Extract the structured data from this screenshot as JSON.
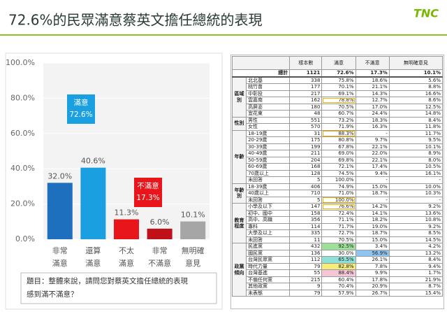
{
  "title": "72.6%的民眾滿意蔡英文擔任總統的表現",
  "logo": "TNC",
  "chart_data": {
    "type": "bar",
    "categories": [
      [
        "非常",
        "滿意"
      ],
      [
        "還算",
        "滿意"
      ],
      [
        "不太",
        "滿意"
      ],
      [
        "非常",
        "不滿意"
      ],
      [
        "無明確",
        "意見"
      ]
    ],
    "values": [
      32.0,
      40.6,
      11.3,
      6.0,
      10.1
    ],
    "value_labels": [
      "32.0%",
      "40.6%",
      "11.3%",
      "6.0%",
      "10.1%"
    ],
    "colors": [
      "#1f6fbf",
      "#1aa0e0",
      "#e8151b",
      "#c0101a",
      "#a6a6a6"
    ],
    "ylim": [
      0,
      100
    ],
    "yticks": [
      {
        "value": 0,
        "label": "0.0%"
      },
      {
        "value": 20,
        "label": "20.0%"
      },
      {
        "value": 40,
        "label": "40.0%"
      },
      {
        "value": 60,
        "label": "60.0%"
      },
      {
        "value": 80,
        "label": "80.0%"
      },
      {
        "value": 100,
        "label": "100.0%"
      }
    ],
    "grid": true,
    "annotations": [
      {
        "lines": [
          "滿意",
          "72.6%"
        ],
        "color": "#1aa0e0"
      },
      {
        "lines": [
          "不滿意",
          "17.3%"
        ],
        "color": "#e8151b"
      }
    ]
  },
  "question": [
    "題目：整體來說，請問您對蔡英文擔任總統的表現",
    "感到滿不滿意？"
  ],
  "table": {
    "header": [
      "樣本數",
      "滿意",
      "不滿意",
      "無明確意見"
    ],
    "total": [
      "總計",
      1121,
      "72.6%",
      "17.3%",
      "10.1%"
    ],
    "groups": [
      {
        "name": "區域別",
        "rows": [
          [
            "北北基",
            338,
            "75.8%",
            "18.6%",
            "5.6%"
          ],
          [
            "桃竹苗",
            177,
            "70.1%",
            "21.1%",
            "8.8%"
          ],
          [
            "中彰投",
            217,
            "69.1%",
            "14.3%",
            "16.6%"
          ],
          [
            "雲嘉南",
            162,
            "78.8%",
            "12.7%",
            "8.6%"
          ],
          [
            "高屏澎",
            180,
            "70.5%",
            "17.0%",
            "12.5%"
          ],
          [
            "宜花東",
            48,
            "60.7%",
            "24.4%",
            "14.8%"
          ]
        ]
      },
      {
        "name": "性別",
        "rows": [
          [
            "男性",
            551,
            "73.2%",
            "18.3%",
            "8.4%"
          ],
          [
            "女性",
            570,
            "71.9%",
            "16.3%",
            "11.8%"
          ]
        ]
      },
      {
        "name": "年齡",
        "rows": [
          [
            "18-19歲",
            31,
            "88.3%",
            "-",
            "11.7%"
          ],
          [
            "20-29歲",
            175,
            "80.8%",
            "9.7%",
            "9.5%"
          ],
          [
            "30-39歲",
            199,
            "67.8%",
            "22.1%",
            "10.1%"
          ],
          [
            "40-49歲",
            211,
            "69.0%",
            "22.0%",
            "8.9%"
          ],
          [
            "50-59歲",
            204,
            "69.8%",
            "22.1%",
            "8.0%"
          ],
          [
            "60-69歲",
            168,
            "72.1%",
            "17.4%",
            "10.5%"
          ],
          [
            "70歲以上",
            128,
            "74.5%",
            "9.4%",
            "16.1%"
          ],
          [
            "未回答",
            5,
            "100.0%",
            "-",
            "-"
          ]
        ]
      },
      {
        "name": "年齡別",
        "rows": [
          [
            "18-39歲",
            406,
            "74.9%",
            "15.0%",
            "10.0%"
          ],
          [
            "40歲以上",
            710,
            "71.0%",
            "18.7%",
            "10.3%"
          ],
          [
            "未回答",
            5,
            "100.0%",
            "-",
            "-"
          ]
        ]
      },
      {
        "name": "教育程度",
        "rows": [
          [
            "小學及以下",
            147,
            "76.6%",
            "14.2%",
            "9.2%"
          ],
          [
            "初中、國中",
            158,
            "72.4%",
            "14.1%",
            "13.6%"
          ],
          [
            "高中、高職",
            356,
            "71.1%",
            "18.2%",
            "10.8%"
          ],
          [
            "專科",
            114,
            "71.7%",
            "19.0%",
            "9.2%"
          ],
          [
            "大學及以上",
            335,
            "72.7%",
            "18.7%",
            "8.5%"
          ],
          [
            "未回答",
            11,
            "70.5%",
            "15.0%",
            "14.5%"
          ]
        ]
      },
      {
        "name": "政黨傾向",
        "rows": [
          [
            "民進黨",
            432,
            "92.5%",
            "3.4%",
            "4.2%"
          ],
          [
            "國民黨",
            136,
            "30.0%",
            "56.9%",
            "13.2%"
          ],
          [
            "台灣民眾黨",
            112,
            "65.5%",
            "26.1%",
            "8.4%"
          ],
          [
            "時代力量",
            79,
            "82.8%",
            "7.8%",
            "9.4%"
          ],
          [
            "台灣基進",
            55,
            "88.4%",
            "9.9%",
            "1.7%"
          ],
          [
            "不偏任何黨",
            215,
            "60.4%",
            "17.8%",
            "21.9%"
          ],
          [
            "其他政黨",
            9,
            "70.4%",
            "20.9%",
            "8.7%"
          ],
          [
            "未表態",
            79,
            "57.9%",
            "26.7%",
            "15.4%"
          ]
        ]
      }
    ]
  }
}
